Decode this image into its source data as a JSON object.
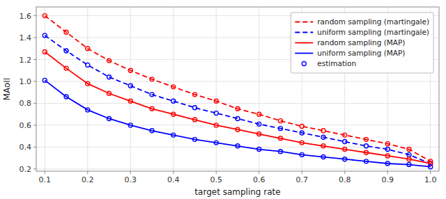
{
  "chart_data": {
    "type": "line",
    "xlabel": "target sampling rate",
    "ylabel": "MAoII",
    "x": [
      0.1,
      0.15,
      0.2,
      0.25,
      0.3,
      0.35,
      0.4,
      0.45,
      0.5,
      0.55,
      0.6,
      0.65,
      0.7,
      0.75,
      0.8,
      0.85,
      0.9,
      0.95,
      1.0
    ],
    "series": [
      {
        "name": "random sampling (martingale)",
        "color": "#FF0000",
        "line_style": "dashed",
        "marker": "circle",
        "values": [
          1.6,
          1.45,
          1.3,
          1.19,
          1.1,
          1.02,
          0.95,
          0.88,
          0.82,
          0.75,
          0.7,
          0.64,
          0.59,
          0.55,
          0.51,
          0.47,
          0.43,
          0.38,
          0.27
        ]
      },
      {
        "name": "uniform sampling (martingale)",
        "color": "#0000FF",
        "line_style": "dashed",
        "marker": "circle",
        "values": [
          1.42,
          1.28,
          1.15,
          1.04,
          0.96,
          0.88,
          0.82,
          0.76,
          0.71,
          0.66,
          0.61,
          0.57,
          0.53,
          0.49,
          0.45,
          0.41,
          0.38,
          0.33,
          0.25
        ]
      },
      {
        "name": "random sampling (MAP)",
        "color": "#FF0000",
        "line_style": "solid",
        "marker": "circle",
        "values": [
          1.27,
          1.12,
          0.98,
          0.89,
          0.82,
          0.75,
          0.7,
          0.65,
          0.6,
          0.56,
          0.52,
          0.48,
          0.44,
          0.41,
          0.38,
          0.35,
          0.32,
          0.29,
          0.25
        ]
      },
      {
        "name": "uniform sampling (MAP)",
        "color": "#0000FF",
        "line_style": "solid",
        "marker": "circle",
        "values": [
          1.01,
          0.86,
          0.74,
          0.66,
          0.6,
          0.55,
          0.51,
          0.47,
          0.44,
          0.41,
          0.38,
          0.36,
          0.33,
          0.31,
          0.29,
          0.27,
          0.25,
          0.24,
          0.22
        ]
      }
    ],
    "legend_extra": {
      "name": "estimation",
      "color": "#0000FF",
      "marker": "circle"
    },
    "xlim": [
      0.08,
      1.02
    ],
    "ylim": [
      0.18,
      1.68
    ],
    "xticks": [
      0.1,
      0.2,
      0.3,
      0.4,
      0.5,
      0.6,
      0.7,
      0.8,
      0.9,
      {
        "value": 1.0,
        "label": "1.0"
      }
    ],
    "yticks": [
      0.2,
      0.4,
      0.6,
      0.8,
      {
        "value": 1.0,
        "label": "1.0"
      },
      1.2,
      1.4,
      1.6
    ],
    "grid": true,
    "legend": "upper right"
  }
}
